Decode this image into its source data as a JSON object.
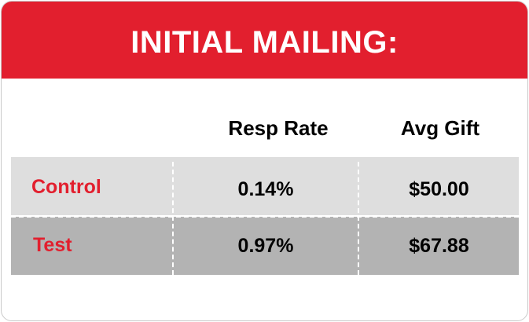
{
  "header": {
    "title": "INITIAL MAILING:"
  },
  "table": {
    "columns": [
      "Resp Rate",
      "Avg Gift"
    ],
    "rows": [
      {
        "label": "Control",
        "resp_rate": "0.14%",
        "avg_gift": "$50.00"
      },
      {
        "label": "Test",
        "resp_rate": "0.97%",
        "avg_gift": "$67.88"
      }
    ]
  },
  "colors": {
    "accent": "#e21f2e",
    "control_row_bg": "#dedede",
    "test_row_bg": "#b3b3b3",
    "text": "#000000",
    "label_text": "#e21f2e"
  }
}
